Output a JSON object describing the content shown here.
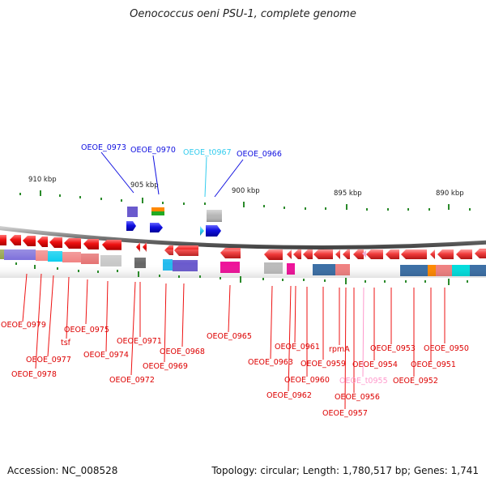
{
  "title": "Oenococcus oeni PSU-1, complete genome",
  "footer": {
    "accession": "Accession: NC_008528",
    "stats": "Topology: circular; Length: 1,780,517 bp; Genes: 1,741"
  },
  "colors": {
    "cds_forward": "#1010e0",
    "cds_reverse": "#ee1111",
    "trna_label": "#ff99cc",
    "rrna_label": "#33ccee",
    "tick": "#2a8a2a",
    "backbone": "#888888"
  },
  "scale": [
    "910 kbp",
    "905 kbp",
    "900 kbp",
    "895 kbp",
    "890 kbp"
  ],
  "upper_labels": [
    "OEOE_0973",
    "OEOE_0970",
    "OEOE_t0967",
    "OEOE_0966"
  ],
  "lower_labels": [
    "OEOE_0979",
    "OEOE_0975",
    "tsf",
    "OEOE_0977",
    "OEOE_0978",
    "OEOE_0974",
    "OEOE_0971",
    "OEOE_0972",
    "OEOE_0968",
    "OEOE_0969",
    "OEOE_0965",
    "OEOE_0963",
    "OEOE_0961",
    "OEOE_0962",
    "OEOE_0960",
    "OEOE_0959",
    "rpmA",
    "OEOE_0953",
    "OEOE_0950",
    "OEOE_0954",
    "OEOE_0951",
    "OEOE_t0955",
    "OEOE_0952",
    "OEOE_0956",
    "OEOE_0957"
  ]
}
